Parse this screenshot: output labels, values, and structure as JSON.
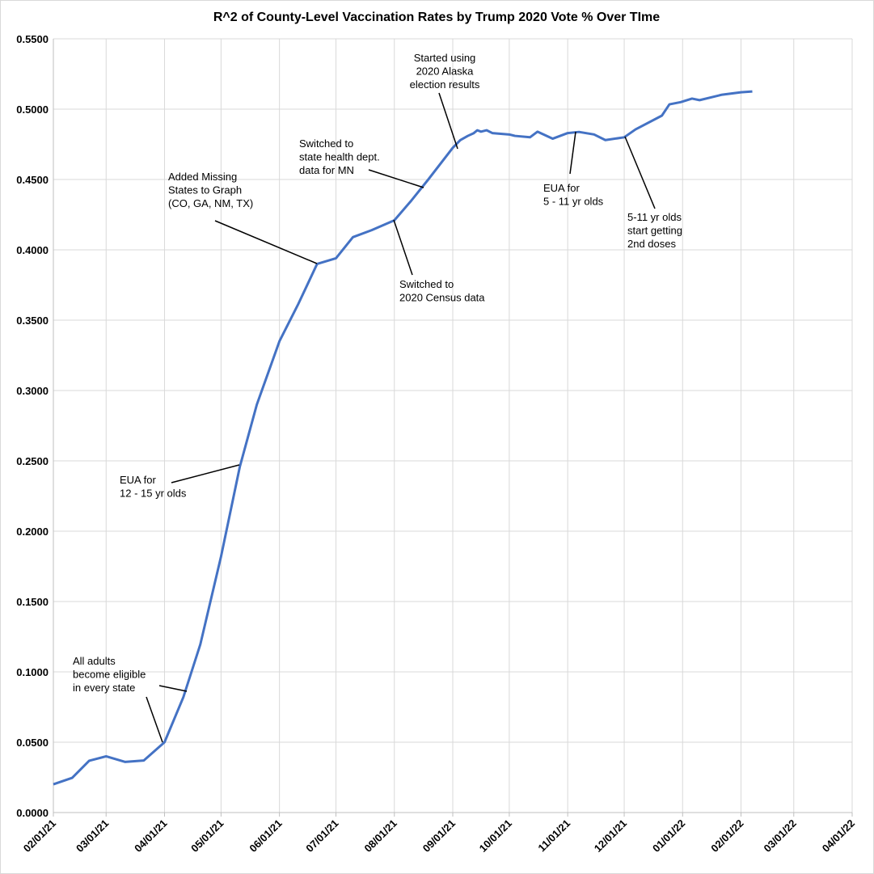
{
  "chart_data": {
    "type": "line",
    "title": "R^2 of County-Level Vaccination Rates by Trump 2020 Vote % Over TIme",
    "x": [
      "02/01/21",
      "02/11/21",
      "02/20/21",
      "03/01/21",
      "03/11/21",
      "03/21/21",
      "04/01/21",
      "04/11/21",
      "04/20/21",
      "05/01/21",
      "05/11/21",
      "05/20/21",
      "06/01/21",
      "06/11/21",
      "06/21/21",
      "07/01/21",
      "07/10/21",
      "07/20/21",
      "08/01/21",
      "08/10/21",
      "08/19/21",
      "09/01/21",
      "09/05/21",
      "09/09/21",
      "09/12/21",
      "09/14/21",
      "09/16/21",
      "09/19/21",
      "09/22/21",
      "10/01/21",
      "10/04/21",
      "10/12/21",
      "10/16/21",
      "10/24/21",
      "11/01/21",
      "11/07/21",
      "11/15/21",
      "11/21/21",
      "12/01/21",
      "12/07/21",
      "12/21/21",
      "12/25/21",
      "12/31/21",
      "01/06/22",
      "01/10/22",
      "01/22/22",
      "02/01/22",
      "02/07/22"
    ],
    "series": [
      {
        "color": "#4472c4",
        "values": [
          0.0201,
          0.0247,
          0.0368,
          0.04,
          0.036,
          0.037,
          0.05,
          0.082,
          0.1195,
          0.182,
          0.246,
          0.29,
          0.335,
          0.3615,
          0.39,
          0.394,
          0.409,
          0.414,
          0.421,
          0.435,
          0.45,
          0.4725,
          0.478,
          0.481,
          0.4828,
          0.485,
          0.484,
          0.485,
          0.483,
          0.482,
          0.481,
          0.48,
          0.484,
          0.479,
          0.483,
          0.4838,
          0.482,
          0.478,
          0.48,
          0.4856,
          0.4954,
          0.5034,
          0.505,
          0.5075,
          0.5064,
          0.5103,
          0.512,
          0.5126
        ]
      }
    ],
    "xlim": [
      "02/01/21",
      "04/01/22"
    ],
    "xticks": [
      "02/01/21",
      "03/01/21",
      "04/01/21",
      "05/01/21",
      "06/01/21",
      "07/01/21",
      "08/01/21",
      "09/01/21",
      "10/01/21",
      "11/01/21",
      "12/01/21",
      "01/01/22",
      "02/01/22",
      "03/01/22",
      "04/01/22"
    ],
    "ylim": [
      0,
      0.55
    ],
    "yticks": [
      {
        "value": 0,
        "label": "0.0000"
      },
      {
        "value": 0.05,
        "label": "0.0500"
      },
      {
        "value": 0.1,
        "label": "0.1000"
      },
      {
        "value": 0.15,
        "label": "0.1500"
      },
      {
        "value": 0.2,
        "label": "0.2000"
      },
      {
        "value": 0.25,
        "label": "0.2500"
      },
      {
        "value": 0.3,
        "label": "0.3000"
      },
      {
        "value": 0.35,
        "label": "0.3500"
      },
      {
        "value": 0.4,
        "label": "0.4000"
      },
      {
        "value": 0.45,
        "label": "0.4500"
      },
      {
        "value": 0.5,
        "label": "0.5000"
      },
      {
        "value": 0.55,
        "label": "0.5500"
      }
    ],
    "grid": true,
    "annotations": [
      {
        "lines": [
          "All adults",
          "become eligible",
          "in every state"
        ]
      },
      {
        "lines": [
          "EUA for",
          "12 - 15 yr olds"
        ]
      },
      {
        "lines": [
          "Added Missing",
          "States to Graph",
          "(CO, GA, NM, TX)"
        ]
      },
      {
        "lines": [
          "Switched to",
          "state health dept.",
          "data for MN"
        ]
      },
      {
        "lines": [
          "Switched to",
          "2020 Census data"
        ]
      },
      {
        "lines": [
          "Started using",
          "2020 Alaska",
          "election results"
        ]
      },
      {
        "lines": [
          "EUA for",
          "5 - 11 yr olds"
        ]
      },
      {
        "lines": [
          "5-11 yr olds",
          "start getting",
          "2nd doses"
        ]
      }
    ]
  }
}
